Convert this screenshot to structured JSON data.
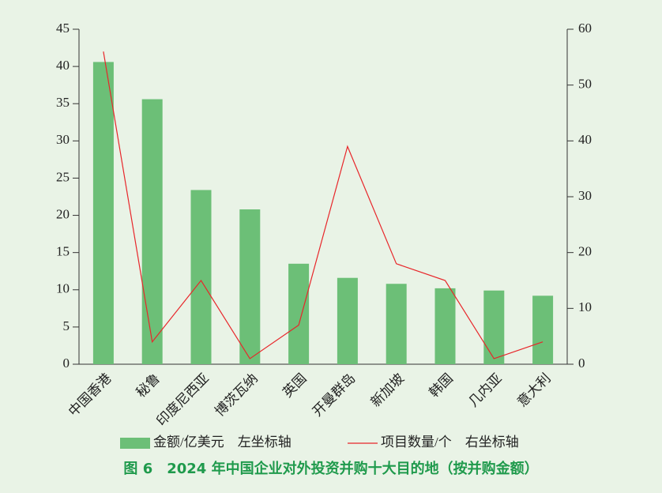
{
  "chart_data": {
    "type": "bar_line",
    "title": "图 6　2024 年中国企业对外投资并购十大目的地（按并购金额）",
    "categories": [
      "中国香港",
      "秘鲁",
      "印度尼西亚",
      "博茨瓦纳",
      "英国",
      "开曼群岛",
      "新加坡",
      "韩国",
      "几内亚",
      "意大利"
    ],
    "series": [
      {
        "name": "金额/亿美元　左坐标轴",
        "color": "#6cbf77",
        "type": "bar",
        "values": [
          40.6,
          35.6,
          23.4,
          20.8,
          13.5,
          11.6,
          10.8,
          10.2,
          9.9,
          9.2
        ]
      },
      {
        "name": "项目数量/个　右坐标轴",
        "color": "#e8262a",
        "type": "line",
        "axis": "y2",
        "values": [
          56,
          4,
          15,
          1,
          7,
          39,
          18,
          15,
          1,
          4
        ]
      }
    ],
    "ylim": [
      0,
      45
    ],
    "yticks": [
      0,
      5,
      10,
      15,
      20,
      25,
      30,
      35,
      40,
      45
    ],
    "y2lim": [
      0,
      60
    ],
    "y2ticks": [
      0,
      10,
      20,
      30,
      40,
      50,
      60
    ]
  }
}
